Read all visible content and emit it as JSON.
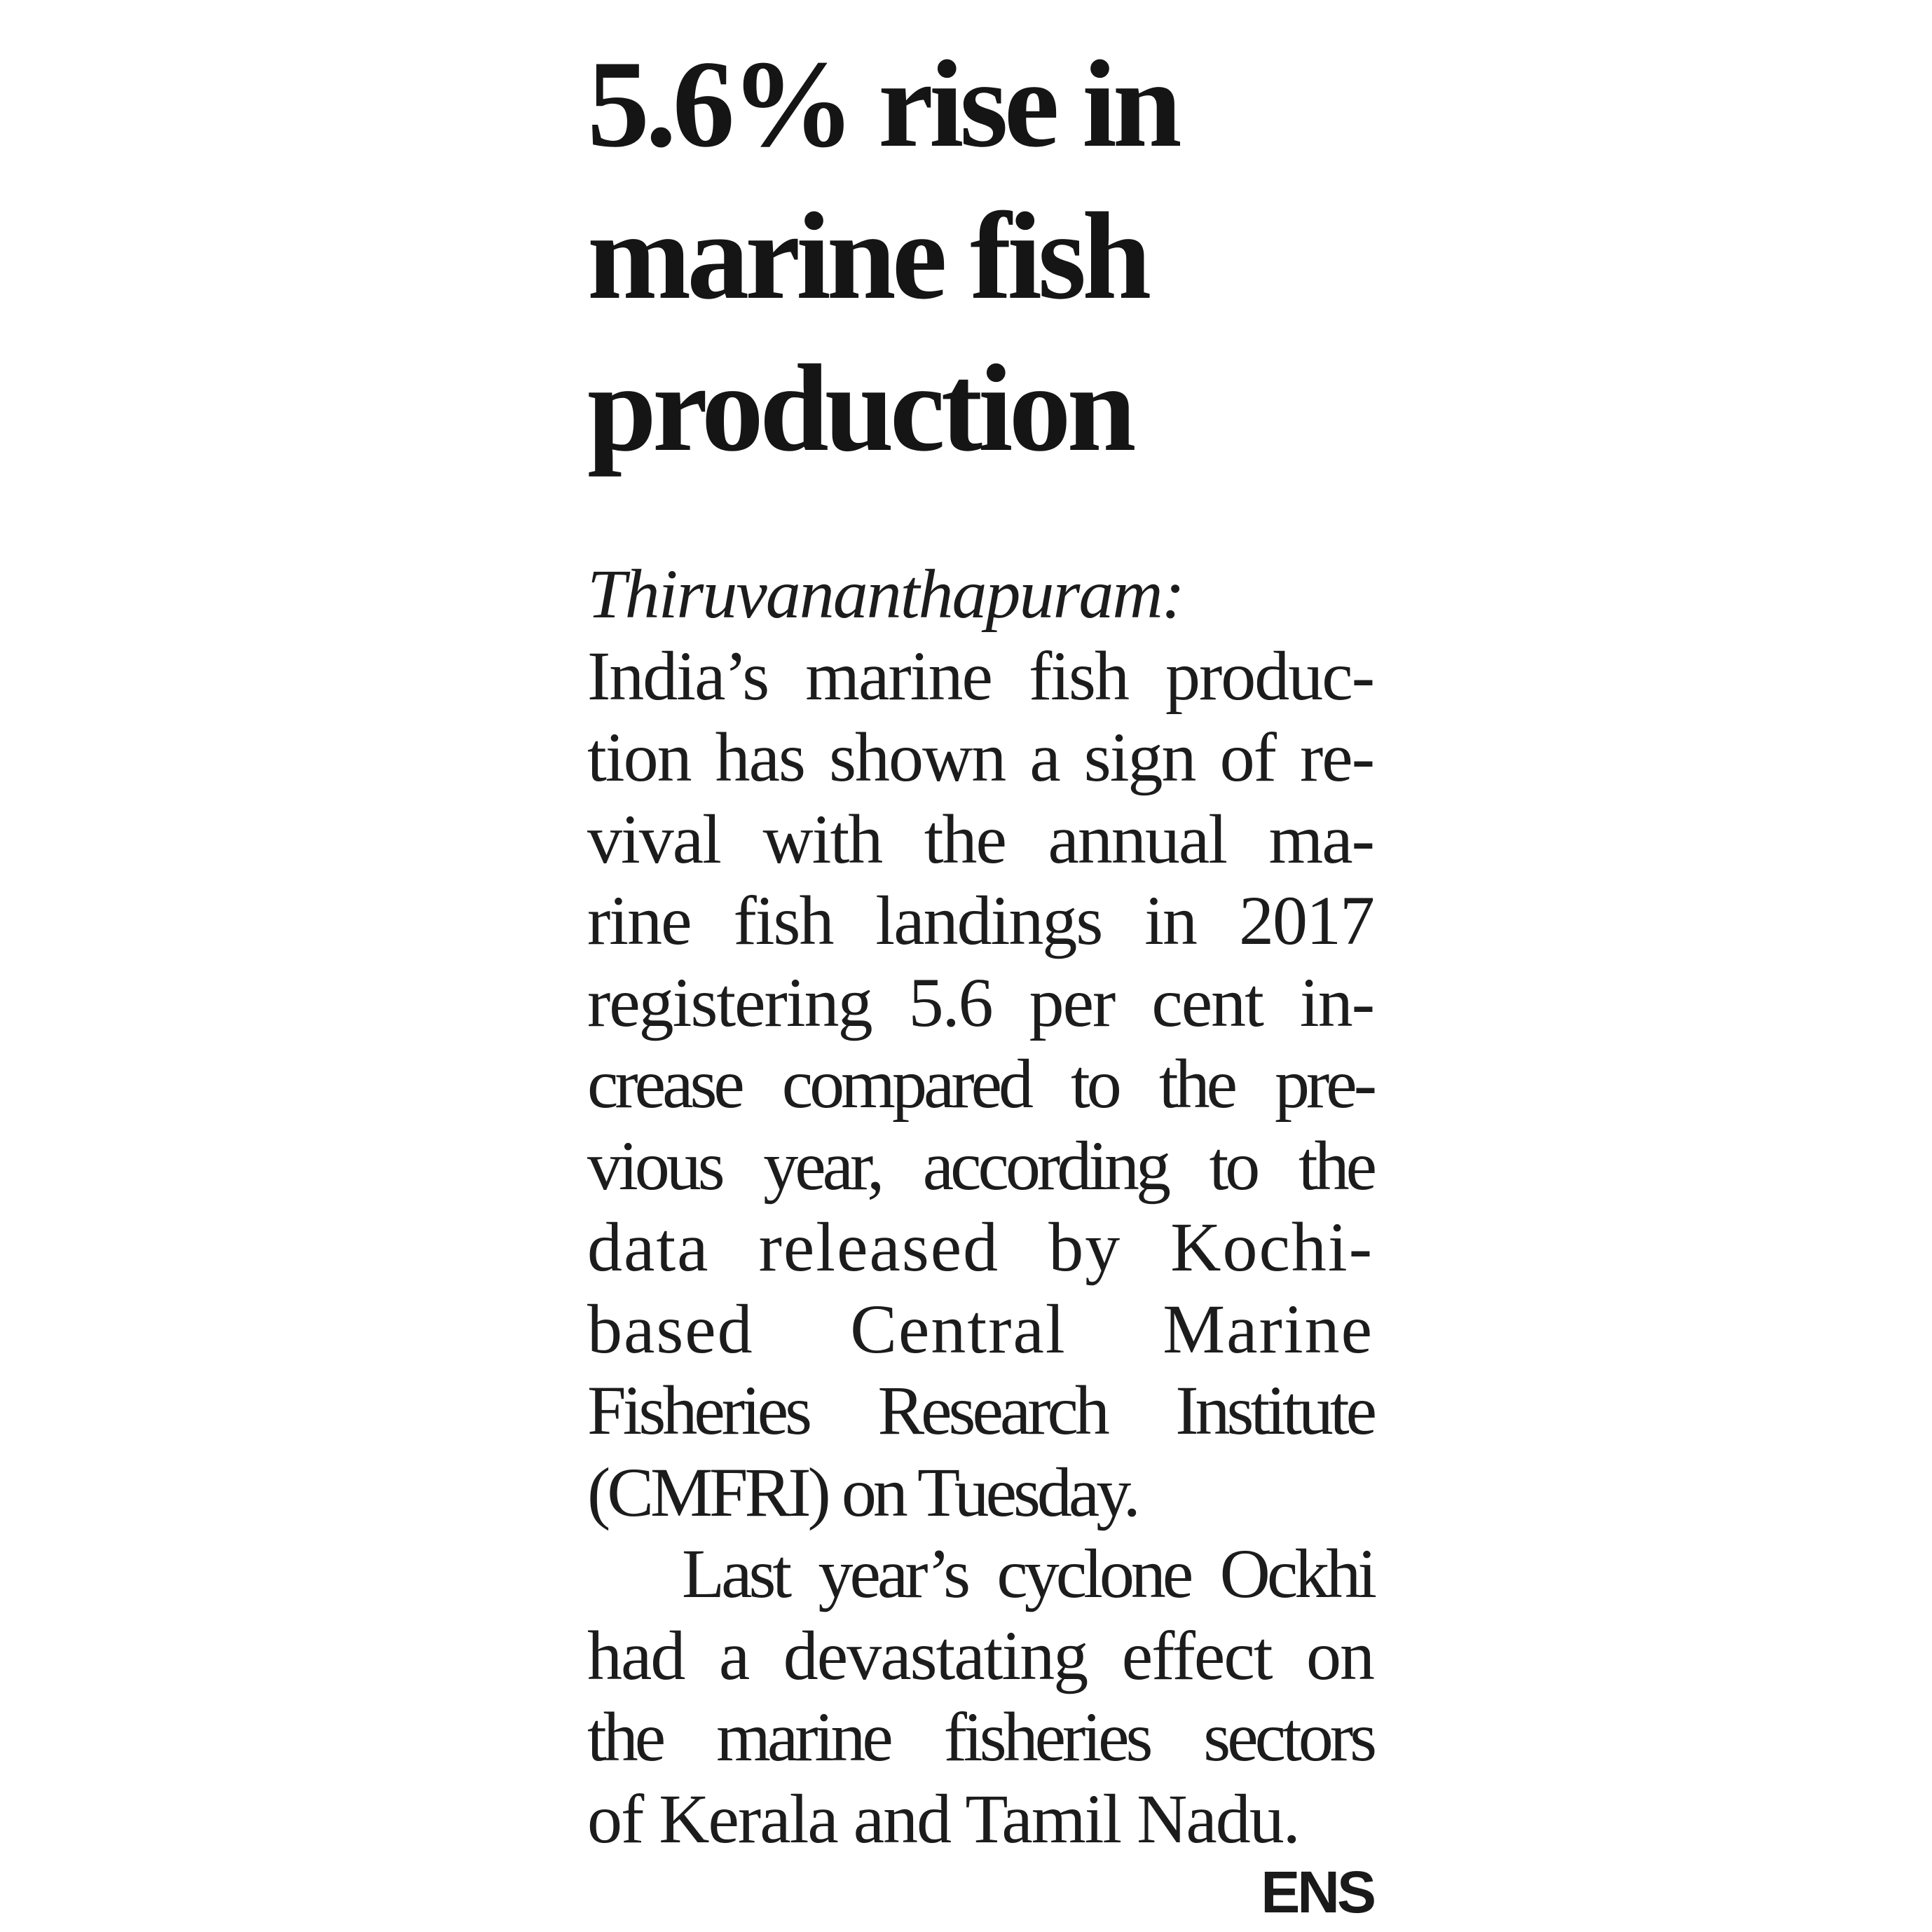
{
  "article": {
    "headline": {
      "lines": [
        "5.6% rise in",
        "marine fish",
        "production"
      ],
      "full": "5.6% rise in marine fish production"
    },
    "dateline": "Thiruvananthapuram:",
    "paragraphs": [
      {
        "lines": [
          "India’s marine fish produc-",
          "tion has shown a sign of re-",
          "vival with the annual ma-",
          "rine fish landings in 2017",
          "registering 5.6 per cent in-",
          "crease compared to the pre-",
          "vious year, according to the",
          "data released by Kochi-",
          "based Central Marine",
          "Fisheries Research Institute",
          "(CMFRI) on Tuesday."
        ]
      },
      {
        "lines": [
          "Last year’s cyclone Ockhi",
          "had a devastating effect on",
          "the marine fisheries sectors",
          "of Kerala and Tamil Nadu."
        ]
      }
    ],
    "byline": "ENS",
    "stats": {
      "percent_rise": "5.6%",
      "year": "2017",
      "source": "Central Marine Fisheries Research Institute (CMFRI)",
      "released_on": "Tuesday"
    }
  }
}
